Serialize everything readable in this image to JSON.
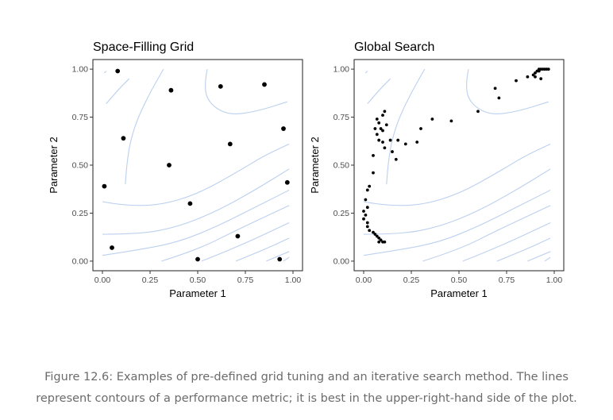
{
  "chart_data": [
    {
      "type": "scatter",
      "title": "Space-Filling Grid",
      "xlabel": "Parameter 1",
      "ylabel": "Parameter 2",
      "xlim": [
        -0.05,
        1.05
      ],
      "ylim": [
        -0.05,
        1.05
      ],
      "xticks": [
        "0.00",
        "0.25",
        "0.50",
        "0.75",
        "1.00"
      ],
      "yticks": [
        "0.00",
        "0.25",
        "0.50",
        "0.75",
        "1.00"
      ],
      "grid": false,
      "contour_color": "#bcd0ef",
      "point_color": "#000000",
      "points": [
        {
          "x": 0.08,
          "y": 0.99
        },
        {
          "x": 0.36,
          "y": 0.89
        },
        {
          "x": 0.62,
          "y": 0.91
        },
        {
          "x": 0.85,
          "y": 0.92
        },
        {
          "x": 0.95,
          "y": 0.69
        },
        {
          "x": 0.11,
          "y": 0.64
        },
        {
          "x": 0.67,
          "y": 0.61
        },
        {
          "x": 0.35,
          "y": 0.5
        },
        {
          "x": 0.01,
          "y": 0.39
        },
        {
          "x": 0.97,
          "y": 0.41
        },
        {
          "x": 0.46,
          "y": 0.3
        },
        {
          "x": 0.71,
          "y": 0.13
        },
        {
          "x": 0.05,
          "y": 0.07
        },
        {
          "x": 0.5,
          "y": 0.01
        },
        {
          "x": 0.93,
          "y": 0.01
        }
      ]
    },
    {
      "type": "scatter",
      "title": "Global Search",
      "xlabel": "Parameter 1",
      "ylabel": "Parameter 2",
      "xlim": [
        -0.05,
        1.05
      ],
      "ylim": [
        -0.05,
        1.05
      ],
      "xticks": [
        "0.00",
        "0.25",
        "0.50",
        "0.75",
        "1.00"
      ],
      "yticks": [
        "0.00",
        "0.25",
        "0.50",
        "0.75",
        "1.00"
      ],
      "grid": false,
      "contour_color": "#bcd0ef",
      "point_color": "#000000",
      "points": [
        {
          "x": 0.0,
          "y": 0.22
        },
        {
          "x": 0.01,
          "y": 0.24
        },
        {
          "x": 0.0,
          "y": 0.26
        },
        {
          "x": 0.02,
          "y": 0.28
        },
        {
          "x": 0.01,
          "y": 0.32
        },
        {
          "x": 0.02,
          "y": 0.37
        },
        {
          "x": 0.03,
          "y": 0.39
        },
        {
          "x": 0.05,
          "y": 0.46
        },
        {
          "x": 0.05,
          "y": 0.55
        },
        {
          "x": 0.02,
          "y": 0.2
        },
        {
          "x": 0.02,
          "y": 0.18
        },
        {
          "x": 0.03,
          "y": 0.16
        },
        {
          "x": 0.05,
          "y": 0.15
        },
        {
          "x": 0.06,
          "y": 0.14
        },
        {
          "x": 0.07,
          "y": 0.13
        },
        {
          "x": 0.08,
          "y": 0.12
        },
        {
          "x": 0.09,
          "y": 0.11
        },
        {
          "x": 0.1,
          "y": 0.1
        },
        {
          "x": 0.11,
          "y": 0.1
        },
        {
          "x": 0.08,
          "y": 0.1
        },
        {
          "x": 0.06,
          "y": 0.69
        },
        {
          "x": 0.07,
          "y": 0.74
        },
        {
          "x": 0.08,
          "y": 0.72
        },
        {
          "x": 0.09,
          "y": 0.69
        },
        {
          "x": 0.1,
          "y": 0.76
        },
        {
          "x": 0.11,
          "y": 0.78
        },
        {
          "x": 0.12,
          "y": 0.71
        },
        {
          "x": 0.1,
          "y": 0.68
        },
        {
          "x": 0.07,
          "y": 0.66
        },
        {
          "x": 0.08,
          "y": 0.63
        },
        {
          "x": 0.1,
          "y": 0.62
        },
        {
          "x": 0.14,
          "y": 0.63
        },
        {
          "x": 0.18,
          "y": 0.63
        },
        {
          "x": 0.11,
          "y": 0.59
        },
        {
          "x": 0.15,
          "y": 0.57
        },
        {
          "x": 0.17,
          "y": 0.53
        },
        {
          "x": 0.22,
          "y": 0.61
        },
        {
          "x": 0.28,
          "y": 0.62
        },
        {
          "x": 0.3,
          "y": 0.69
        },
        {
          "x": 0.36,
          "y": 0.74
        },
        {
          "x": 0.46,
          "y": 0.73
        },
        {
          "x": 0.6,
          "y": 0.78
        },
        {
          "x": 0.69,
          "y": 0.9
        },
        {
          "x": 0.71,
          "y": 0.85
        },
        {
          "x": 0.8,
          "y": 0.94
        },
        {
          "x": 0.86,
          "y": 0.96
        },
        {
          "x": 0.89,
          "y": 0.97
        },
        {
          "x": 0.9,
          "y": 0.98
        },
        {
          "x": 0.91,
          "y": 0.99
        },
        {
          "x": 0.92,
          "y": 1.0
        },
        {
          "x": 0.93,
          "y": 1.0
        },
        {
          "x": 0.94,
          "y": 1.0
        },
        {
          "x": 0.95,
          "y": 1.0
        },
        {
          "x": 0.96,
          "y": 1.0
        },
        {
          "x": 0.97,
          "y": 1.0
        },
        {
          "x": 0.9,
          "y": 0.96
        },
        {
          "x": 0.93,
          "y": 0.95
        },
        {
          "x": 0.92,
          "y": 0.99
        }
      ]
    }
  ],
  "caption": "Figure 12.6: Examples of pre-defined grid tuning and an iterative search method. The lines represent contours of a performance metric; it is best in the upper-right-hand side of the plot."
}
